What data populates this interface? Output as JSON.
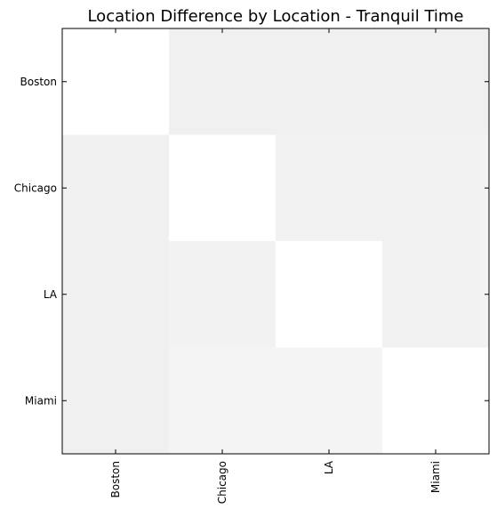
{
  "chart_data": {
    "type": "heatmap",
    "title": "Location Difference by Location - Tranquil Time",
    "categories": [
      "Boston",
      "Chicago",
      "LA",
      "Miami"
    ],
    "values": [
      [
        0,
        0.06,
        0.06,
        0.06
      ],
      [
        0.06,
        0,
        0.05,
        0.05
      ],
      [
        0.06,
        0.05,
        0,
        0.05
      ],
      [
        0.06,
        0.045,
        0.045,
        0
      ]
    ],
    "colormap": "gray_r",
    "vlim": [
      0,
      1
    ]
  }
}
